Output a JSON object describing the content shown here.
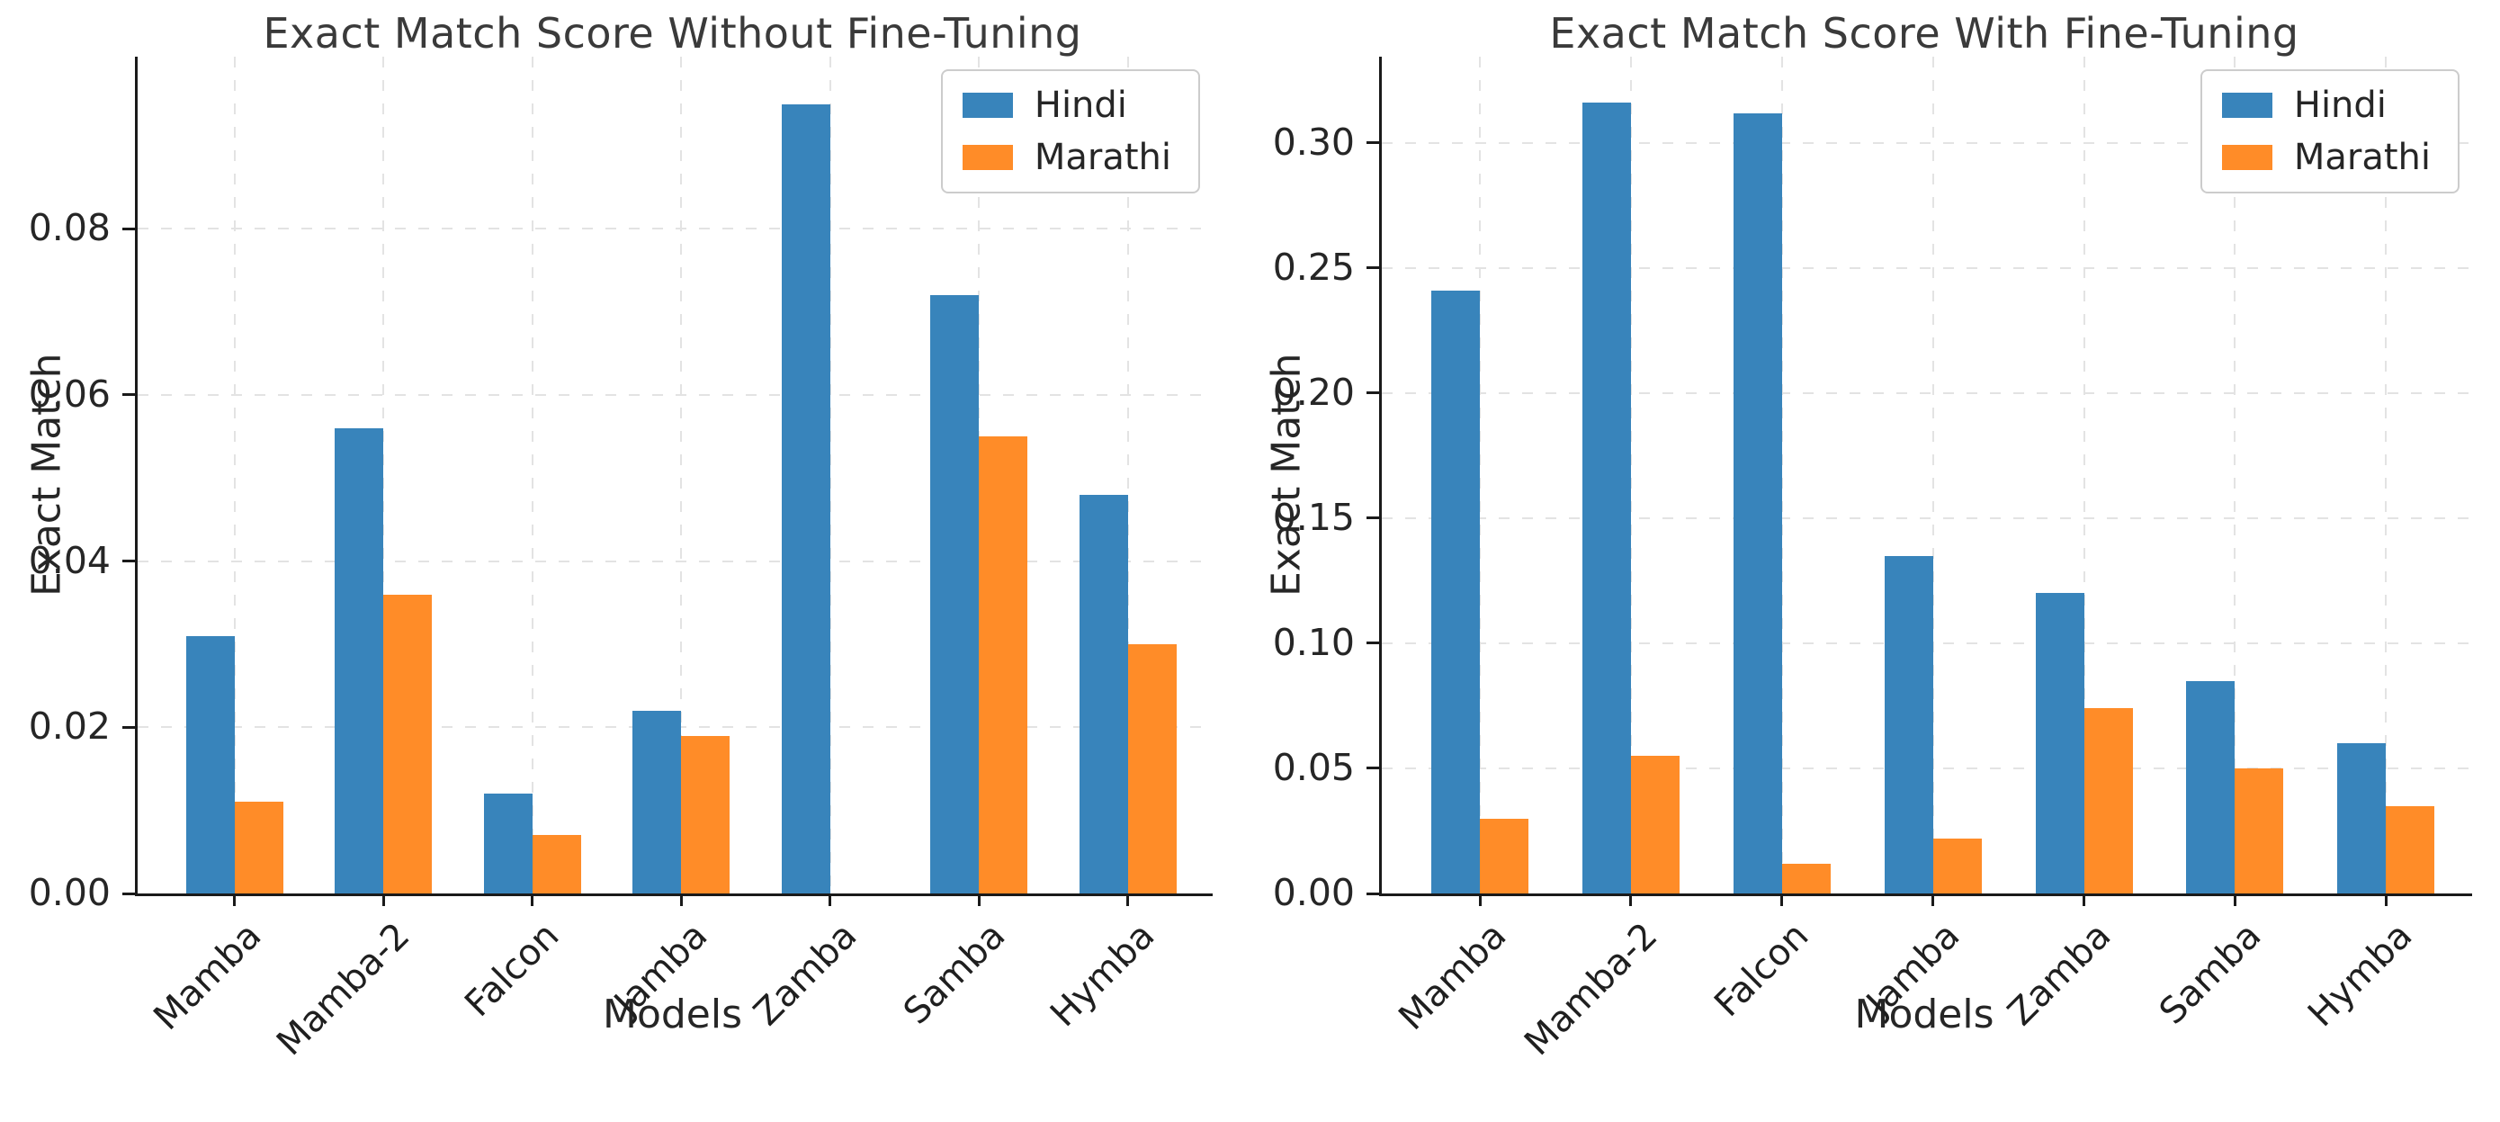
{
  "colors": {
    "hindi": "#3884bb",
    "marathi": "#ff8c28",
    "grid": "#e3e3e3",
    "axis": "#1a1a1a",
    "title_text": "#3a3a3a"
  },
  "chart_data": [
    {
      "type": "bar",
      "title": "Exact Match Score Without Fine-Tuning",
      "xlabel": "Models",
      "ylabel": "Exact Match",
      "categories": [
        "Mamba",
        "Mamba-2",
        "Falcon",
        "Jamba",
        "Zamba",
        "Samba",
        "Hymba"
      ],
      "series": [
        {
          "name": "Hindi",
          "color": "#3884bb",
          "values": [
            0.031,
            0.056,
            0.012,
            0.022,
            0.095,
            0.072,
            0.048
          ]
        },
        {
          "name": "Marathi",
          "color": "#ff8c28",
          "values": [
            0.011,
            0.036,
            0.007,
            0.019,
            0.0,
            0.055,
            0.03
          ]
        }
      ],
      "yticks": [
        0.0,
        0.02,
        0.04,
        0.06,
        0.08
      ],
      "ylim": [
        0,
        0.1007
      ],
      "ytick_decimals": 2,
      "grid": "dashed, both axes",
      "legend_position": "upper right"
    },
    {
      "type": "bar",
      "title": "Exact Match Score With Fine-Tuning",
      "xlabel": "Models",
      "ylabel": "Exact Match",
      "categories": [
        "Mamba",
        "Mamba-2",
        "Falcon",
        "Jamba",
        "Zamba",
        "Samba",
        "Hymba"
      ],
      "series": [
        {
          "name": "Hindi",
          "color": "#3884bb",
          "values": [
            0.241,
            0.316,
            0.312,
            0.135,
            0.12,
            0.085,
            0.06
          ]
        },
        {
          "name": "Marathi",
          "color": "#ff8c28",
          "values": [
            0.03,
            0.055,
            0.012,
            0.022,
            0.074,
            0.05,
            0.035
          ]
        }
      ],
      "yticks": [
        0.0,
        0.05,
        0.1,
        0.15,
        0.2,
        0.25,
        0.3
      ],
      "ylim": [
        0,
        0.3345
      ],
      "ytick_decimals": 2,
      "grid": "dashed, both axes",
      "legend_position": "upper right"
    }
  ]
}
